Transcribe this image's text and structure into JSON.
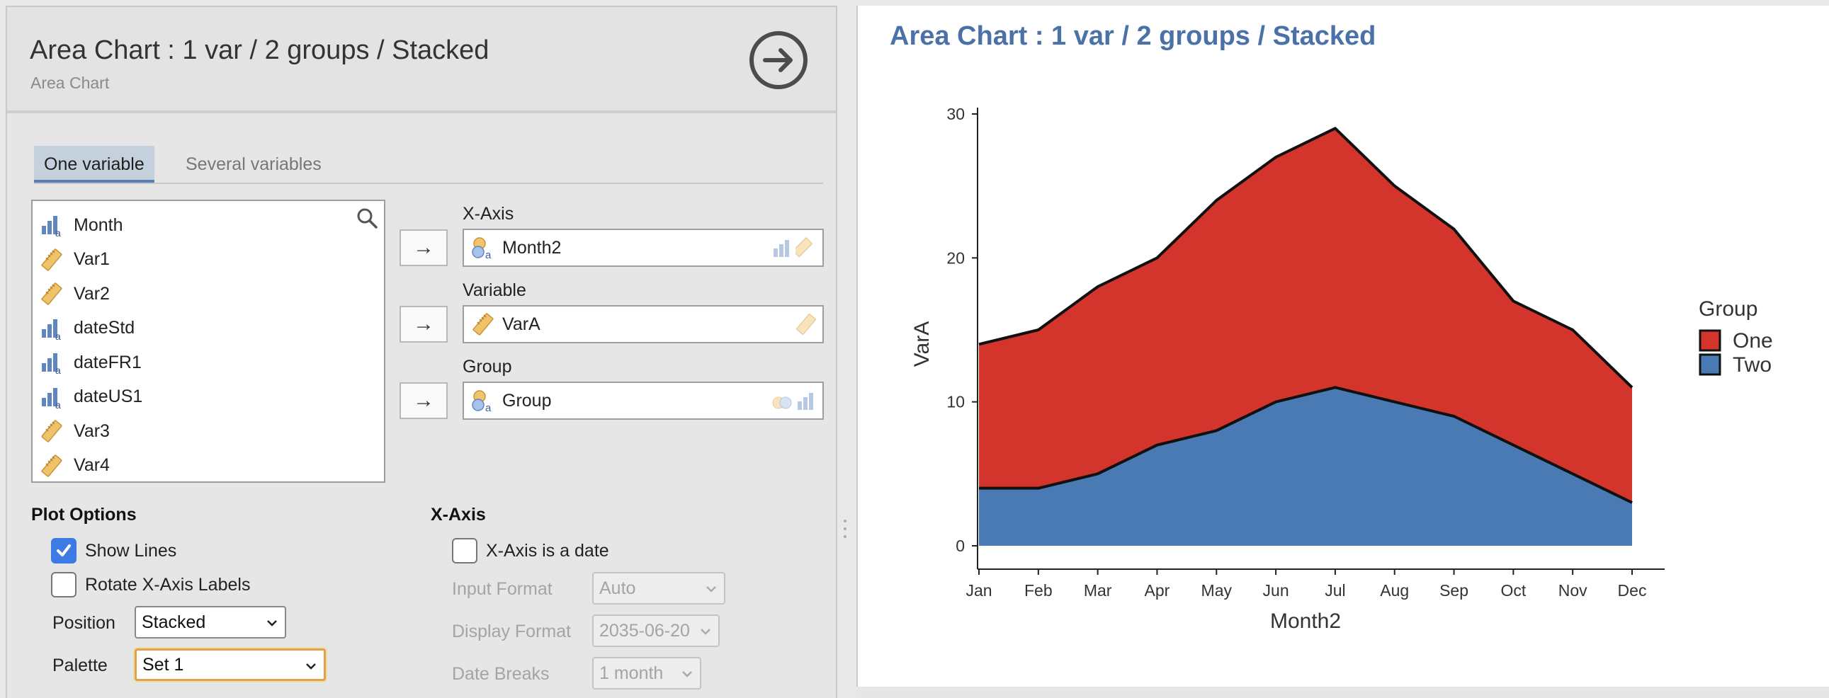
{
  "header": {
    "title": "Area Chart : 1 var / 2 groups / Stacked",
    "subtitle": "Area Chart"
  },
  "tabs": [
    {
      "label": "One variable",
      "active": true
    },
    {
      "label": "Several variables",
      "active": false
    }
  ],
  "variables": [
    {
      "name": "Month",
      "icon": "nominal-bars-icon"
    },
    {
      "name": "Var1",
      "icon": "ruler-icon"
    },
    {
      "name": "Var2",
      "icon": "ruler-icon"
    },
    {
      "name": "dateStd",
      "icon": "nominal-bars-icon"
    },
    {
      "name": "dateFR1",
      "icon": "nominal-bars-icon"
    },
    {
      "name": "dateUS1",
      "icon": "nominal-bars-icon"
    },
    {
      "name": "Var3",
      "icon": "ruler-icon"
    },
    {
      "name": "Var4",
      "icon": "ruler-icon"
    }
  ],
  "targets": {
    "xaxis": {
      "label": "X-Axis",
      "value": "Month2"
    },
    "variable": {
      "label": "Variable",
      "value": "VarA"
    },
    "group": {
      "label": "Group",
      "value": "Group"
    }
  },
  "plot_options": {
    "heading": "Plot Options",
    "show_lines": {
      "label": "Show Lines",
      "checked": true
    },
    "rotate_labels": {
      "label": "Rotate X-Axis Labels",
      "checked": false
    },
    "position": {
      "label": "Position",
      "value": "Stacked"
    },
    "palette": {
      "label": "Palette",
      "value": "Set 1"
    }
  },
  "xaxis_options": {
    "heading": "X-Axis",
    "is_date": {
      "label": "X-Axis is a date",
      "checked": false
    },
    "input_format": {
      "label": "Input Format",
      "value": "Auto"
    },
    "display_format": {
      "label": "Display Format",
      "value": "2035-06-20"
    },
    "date_breaks": {
      "label": "Date Breaks",
      "value": "1 month"
    }
  },
  "results": {
    "title": "Area Chart : 1 var / 2 groups / Stacked"
  },
  "chart_data": {
    "type": "area",
    "stacked": true,
    "title": "Area Chart : 1 var / 2 groups / Stacked",
    "xlabel": "Month2",
    "ylabel": "VarA",
    "categories": [
      "Jan",
      "Feb",
      "Mar",
      "Apr",
      "May",
      "Jun",
      "Jul",
      "Aug",
      "Sep",
      "Oct",
      "Nov",
      "Dec"
    ],
    "series": [
      {
        "name": "Two",
        "values": [
          4,
          4,
          5,
          7,
          8,
          10,
          11,
          10,
          9,
          7,
          5,
          3
        ],
        "color": "#4a7ab4"
      },
      {
        "name": "One",
        "values": [
          10,
          11,
          13,
          13,
          16,
          17,
          18,
          15,
          13,
          10,
          10,
          8
        ],
        "color": "#d3342c"
      }
    ],
    "ylim": [
      0,
      30
    ],
    "yticks": [
      0,
      10,
      20,
      30
    ],
    "legend": {
      "title": "Group",
      "entries": [
        "One",
        "Two"
      ],
      "position": "right"
    },
    "grid": false,
    "line_color": "#111111"
  }
}
